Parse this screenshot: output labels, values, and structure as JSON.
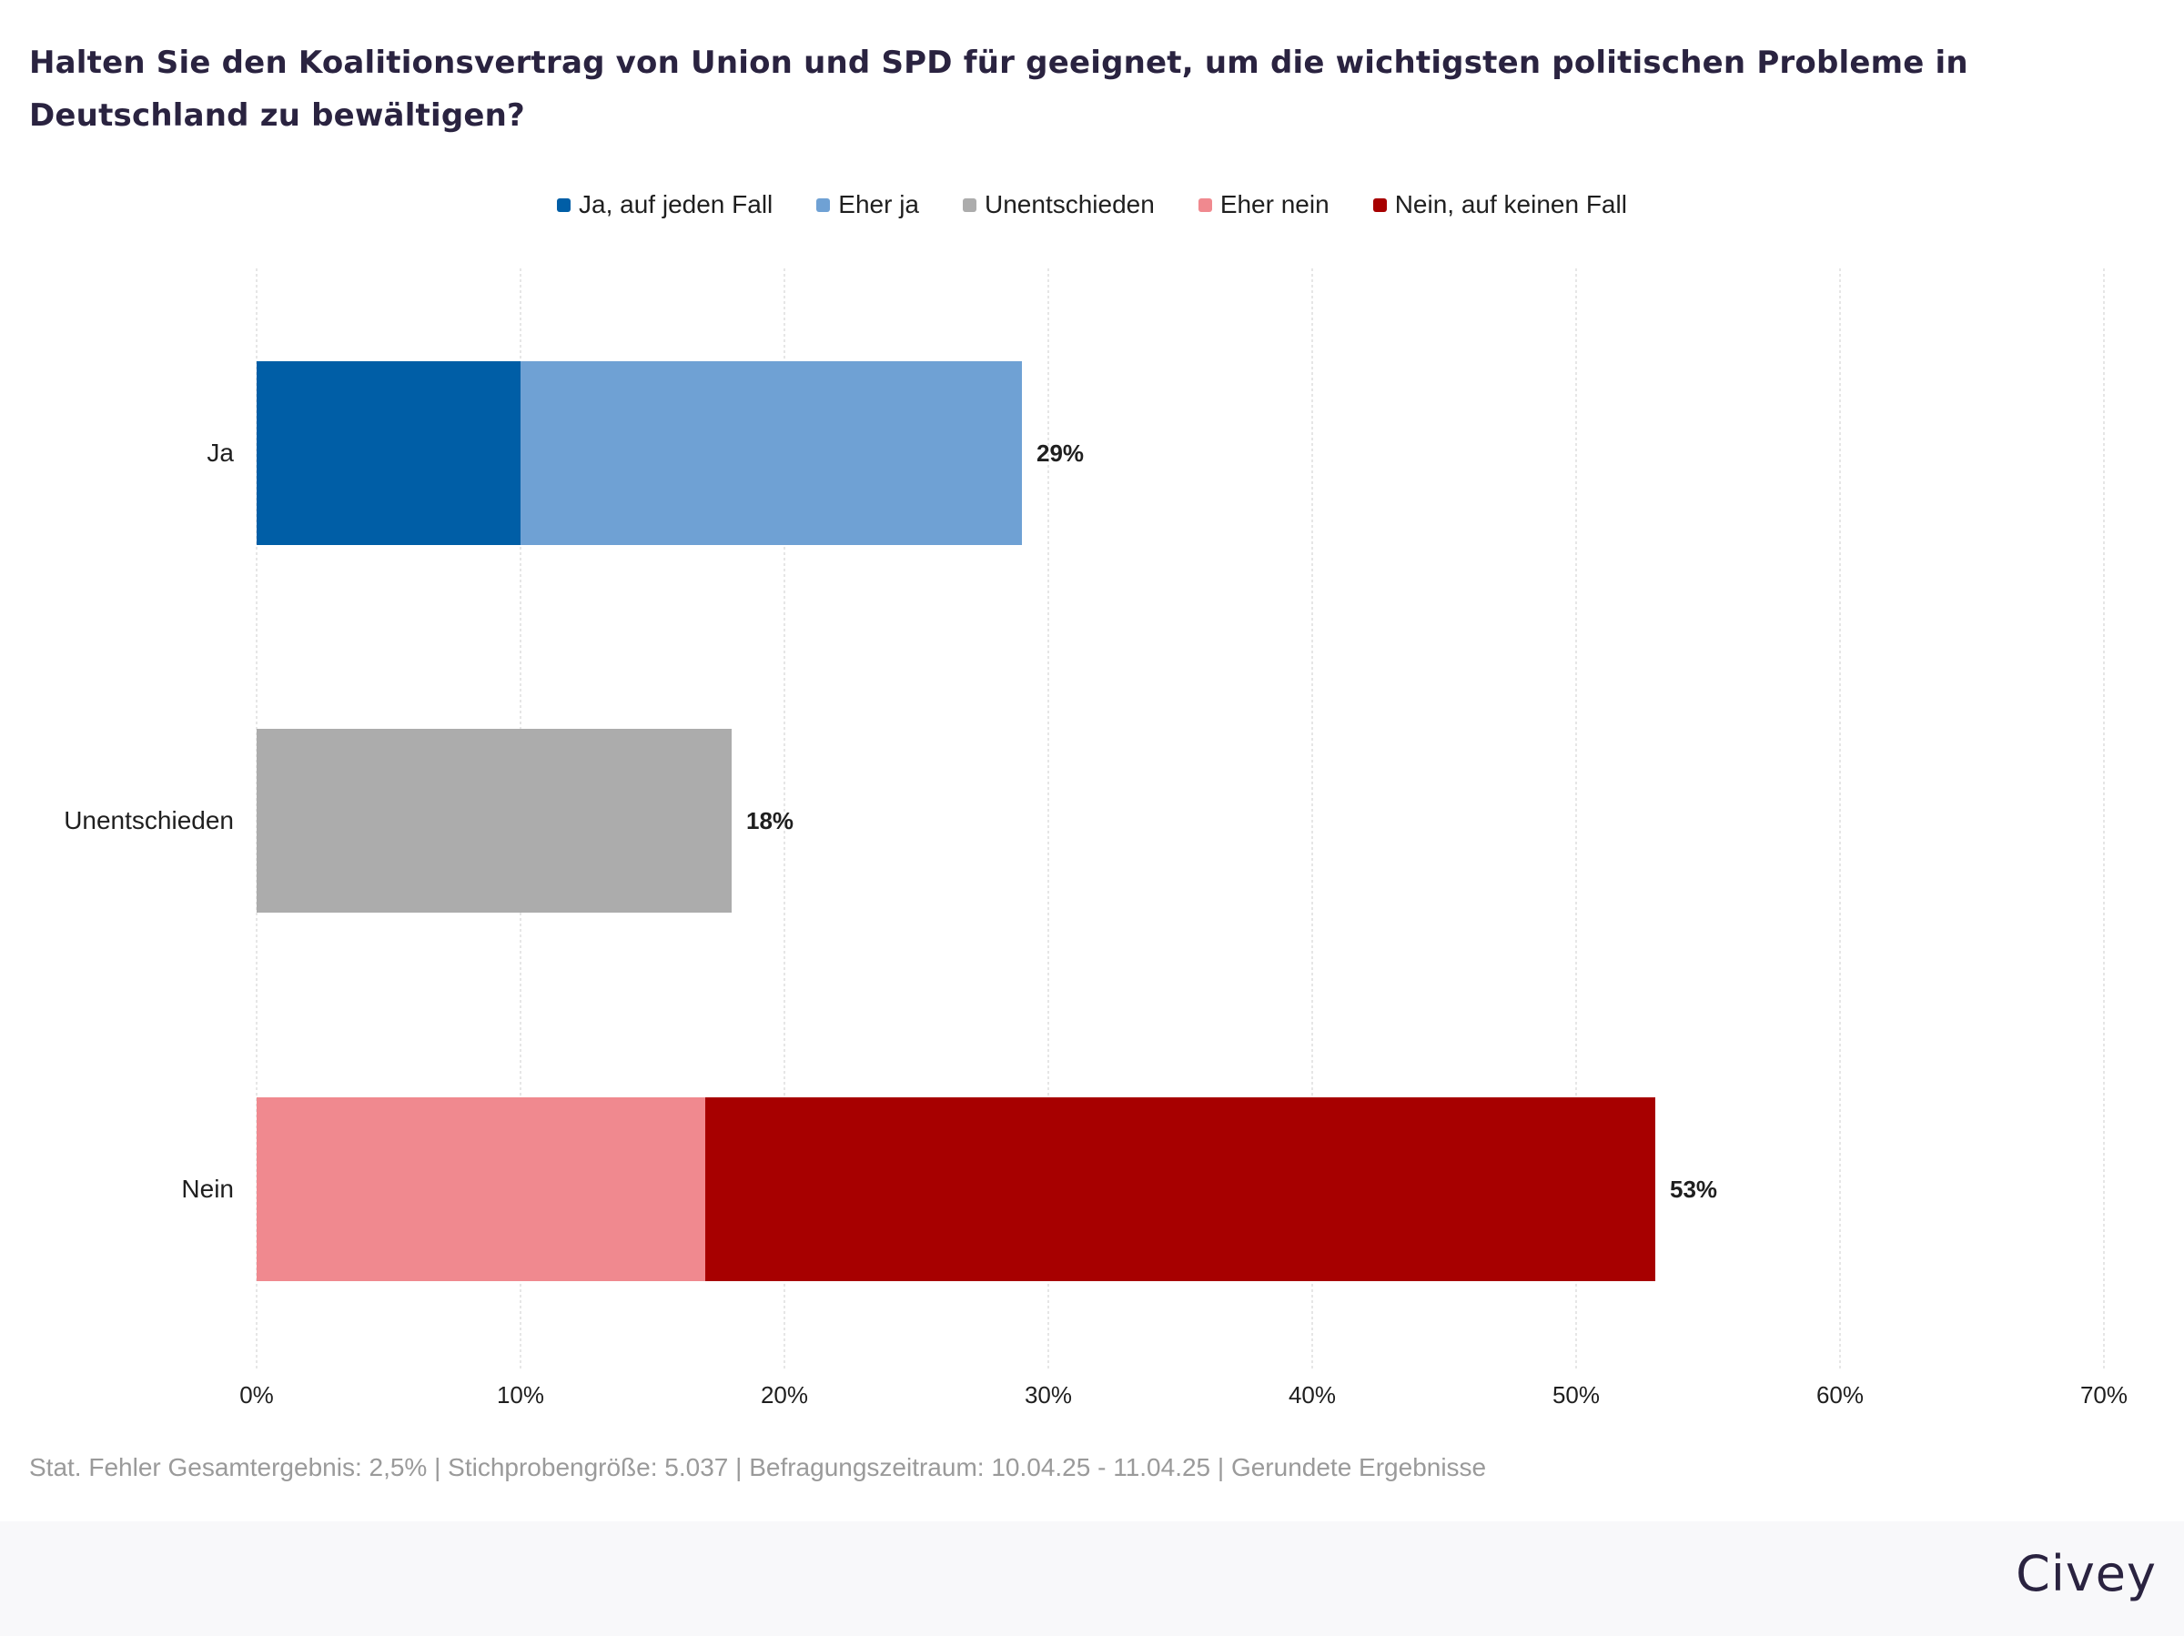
{
  "title": "Halten Sie den Koalitionsvertrag von Union und SPD für geeignet, um die wichtigsten politischen Probleme in Deutschland zu bewältigen?",
  "footnote": "Stat. Fehler Gesamtergebnis: 2,5% | Stichprobengröße: 5.037 | Befragungszeitraum: 10.04.25 - 11.04.25 | Gerundete Ergebnisse",
  "brand": "Civey",
  "chart_data": {
    "type": "bar",
    "orientation": "horizontal",
    "stacked": true,
    "categories": [
      "Ja",
      "Unentschieden",
      "Nein"
    ],
    "series": [
      {
        "name": "Ja, auf jeden Fall",
        "color": "#005ea6",
        "values": [
          10,
          0,
          0
        ]
      },
      {
        "name": "Eher ja",
        "color": "#6fa1d4",
        "values": [
          19,
          0,
          0
        ]
      },
      {
        "name": "Unentschieden",
        "color": "#acacac",
        "values": [
          0,
          18,
          0
        ]
      },
      {
        "name": "Eher nein",
        "color": "#f0898f",
        "values": [
          0,
          0,
          17
        ]
      },
      {
        "name": "Nein, auf keinen Fall",
        "color": "#a70000",
        "values": [
          0,
          0,
          36
        ]
      }
    ],
    "totals": [
      "29%",
      "18%",
      "53%"
    ],
    "xlim": [
      0,
      70
    ],
    "ticks": [
      "0%",
      "10%",
      "20%",
      "30%",
      "40%",
      "50%",
      "60%",
      "70%"
    ],
    "grid": true,
    "legend_position": "top-center"
  }
}
